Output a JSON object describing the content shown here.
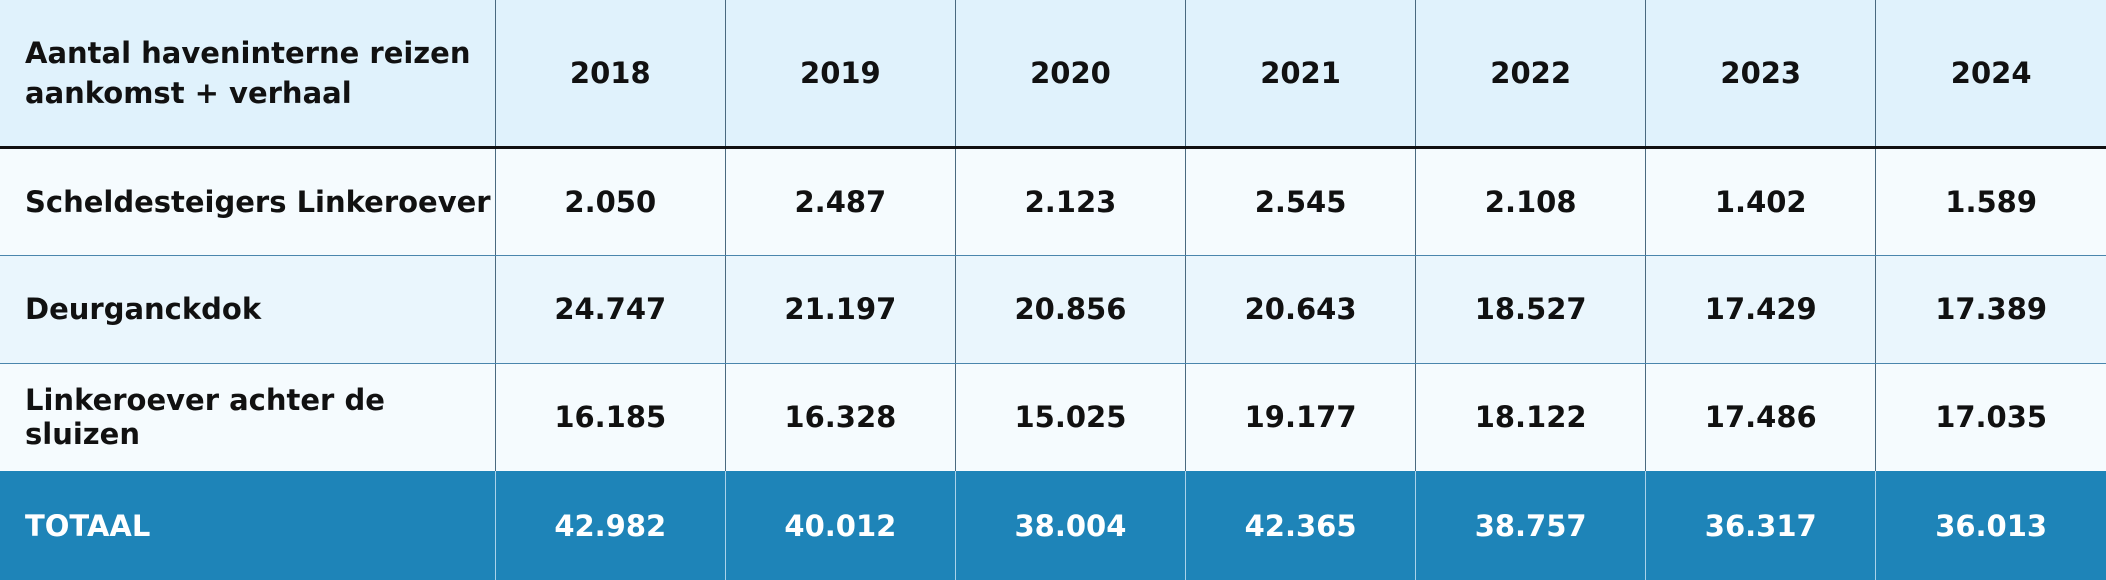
{
  "table": {
    "header_label": "Aantal haveninterne reizen aankomst + verhaal",
    "years": [
      "2018",
      "2019",
      "2020",
      "2021",
      "2022",
      "2023",
      "2024"
    ],
    "rows": [
      {
        "label": "Scheldesteigers Linkeroever",
        "values": [
          "2.050",
          "2.487",
          "2.123",
          "2.545",
          "2.108",
          "1.402",
          "1.589"
        ]
      },
      {
        "label": "Deurganckdok",
        "values": [
          "24.747",
          "21.197",
          "20.856",
          "20.643",
          "18.527",
          "17.429",
          "17.389"
        ]
      },
      {
        "label": "Linkeroever achter de sluizen",
        "values": [
          "16.185",
          "16.328",
          "15.025",
          "19.177",
          "18.122",
          "17.486",
          "17.035"
        ]
      }
    ],
    "total": {
      "label": "TOTAAL",
      "values": [
        "42.982",
        "40.012",
        "38.004",
        "42.365",
        "38.757",
        "36.317",
        "36.013"
      ]
    }
  },
  "colors": {
    "header_bg": "#e0f2fc",
    "total_bg": "#1e84b8"
  }
}
